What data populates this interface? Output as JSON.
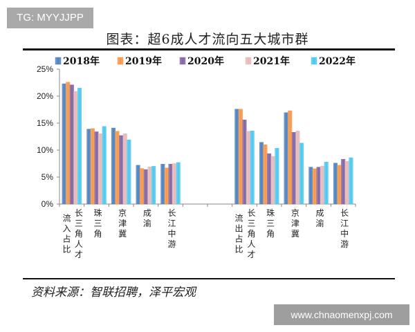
{
  "watermark_top": "TG: MYYJJPP",
  "watermark_bottom": "www.chnaomenxpj.com",
  "footer": {
    "source": "资料来源：智联招聘，泽平宏观"
  },
  "chart_data": {
    "type": "bar",
    "title": "图表：超6成人才流向五大城市群",
    "group_labels": [
      "流入占比",
      "流出占比"
    ],
    "categories": [
      "长三角人才",
      "珠三角",
      "京津冀",
      "成渝",
      "长江中游",
      "",
      "",
      "长三角人才",
      "珠三角",
      "京津冀",
      "成渝",
      "长江中游"
    ],
    "series": [
      {
        "name": "2018年",
        "color": "#4f81bd",
        "values": [
          22.3,
          13.9,
          14.1,
          7.2,
          7.4,
          null,
          null,
          17.6,
          11.45,
          16.95,
          6.85,
          7.6
        ]
      },
      {
        "name": "2019年",
        "color": "#f79646",
        "values": [
          22.6,
          14.0,
          13.5,
          6.6,
          6.7,
          null,
          null,
          17.6,
          11.0,
          17.3,
          6.55,
          7.2
        ]
      },
      {
        "name": "2020年",
        "color": "#8064a2",
        "values": [
          22.1,
          13.4,
          12.7,
          6.4,
          7.4,
          null,
          null,
          15.6,
          9.35,
          13.3,
          6.85,
          8.3
        ]
      },
      {
        "name": "2021年",
        "color": "#e6b9b8",
        "values": [
          20.9,
          13.05,
          13.05,
          6.9,
          7.5,
          null,
          null,
          13.5,
          8.85,
          13.55,
          7.05,
          7.95
        ]
      },
      {
        "name": "2022年",
        "color": "#4bc8f0",
        "values": [
          21.5,
          14.4,
          11.9,
          7.0,
          7.7,
          null,
          null,
          13.55,
          10.35,
          11.3,
          7.8,
          8.6
        ]
      }
    ],
    "yticks": [
      "0%",
      "5%",
      "10%",
      "15%",
      "20%",
      "25%"
    ],
    "ylim": [
      0,
      25
    ],
    "legend": "top",
    "grid": false
  }
}
